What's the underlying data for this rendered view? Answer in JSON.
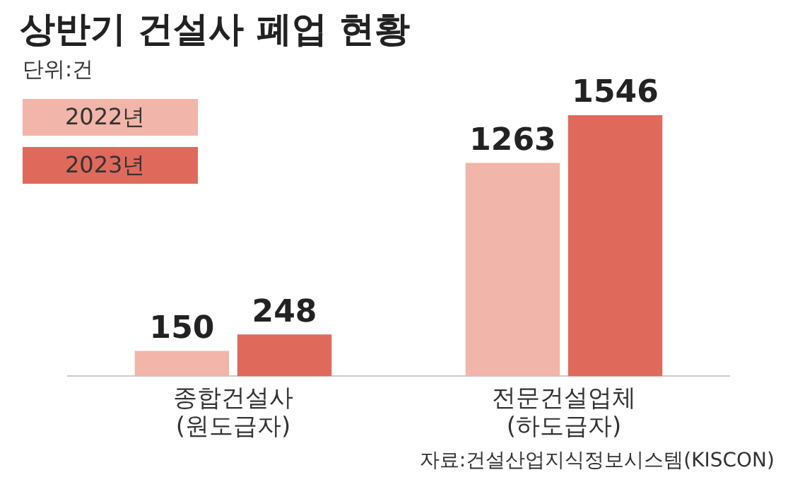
{
  "chart_data": {
    "type": "bar",
    "title": "상반기 건설사 폐업 현황",
    "subtitle": "단위:건",
    "categories": [
      "종합건설사\n(원도급자)",
      "전문건설업체\n(하도급자)"
    ],
    "series": [
      {
        "name": "2022년",
        "color": "#f2b5aa",
        "values": [
          150,
          1263
        ]
      },
      {
        "name": "2023년",
        "color": "#df6a5c",
        "values": [
          248,
          1546
        ]
      }
    ],
    "relative": false,
    "data_labels": true,
    "legend": "top left",
    "grid": false,
    "annotations": [
      "자료:건설산업지식정보시스템(KISCON)"
    ]
  }
}
